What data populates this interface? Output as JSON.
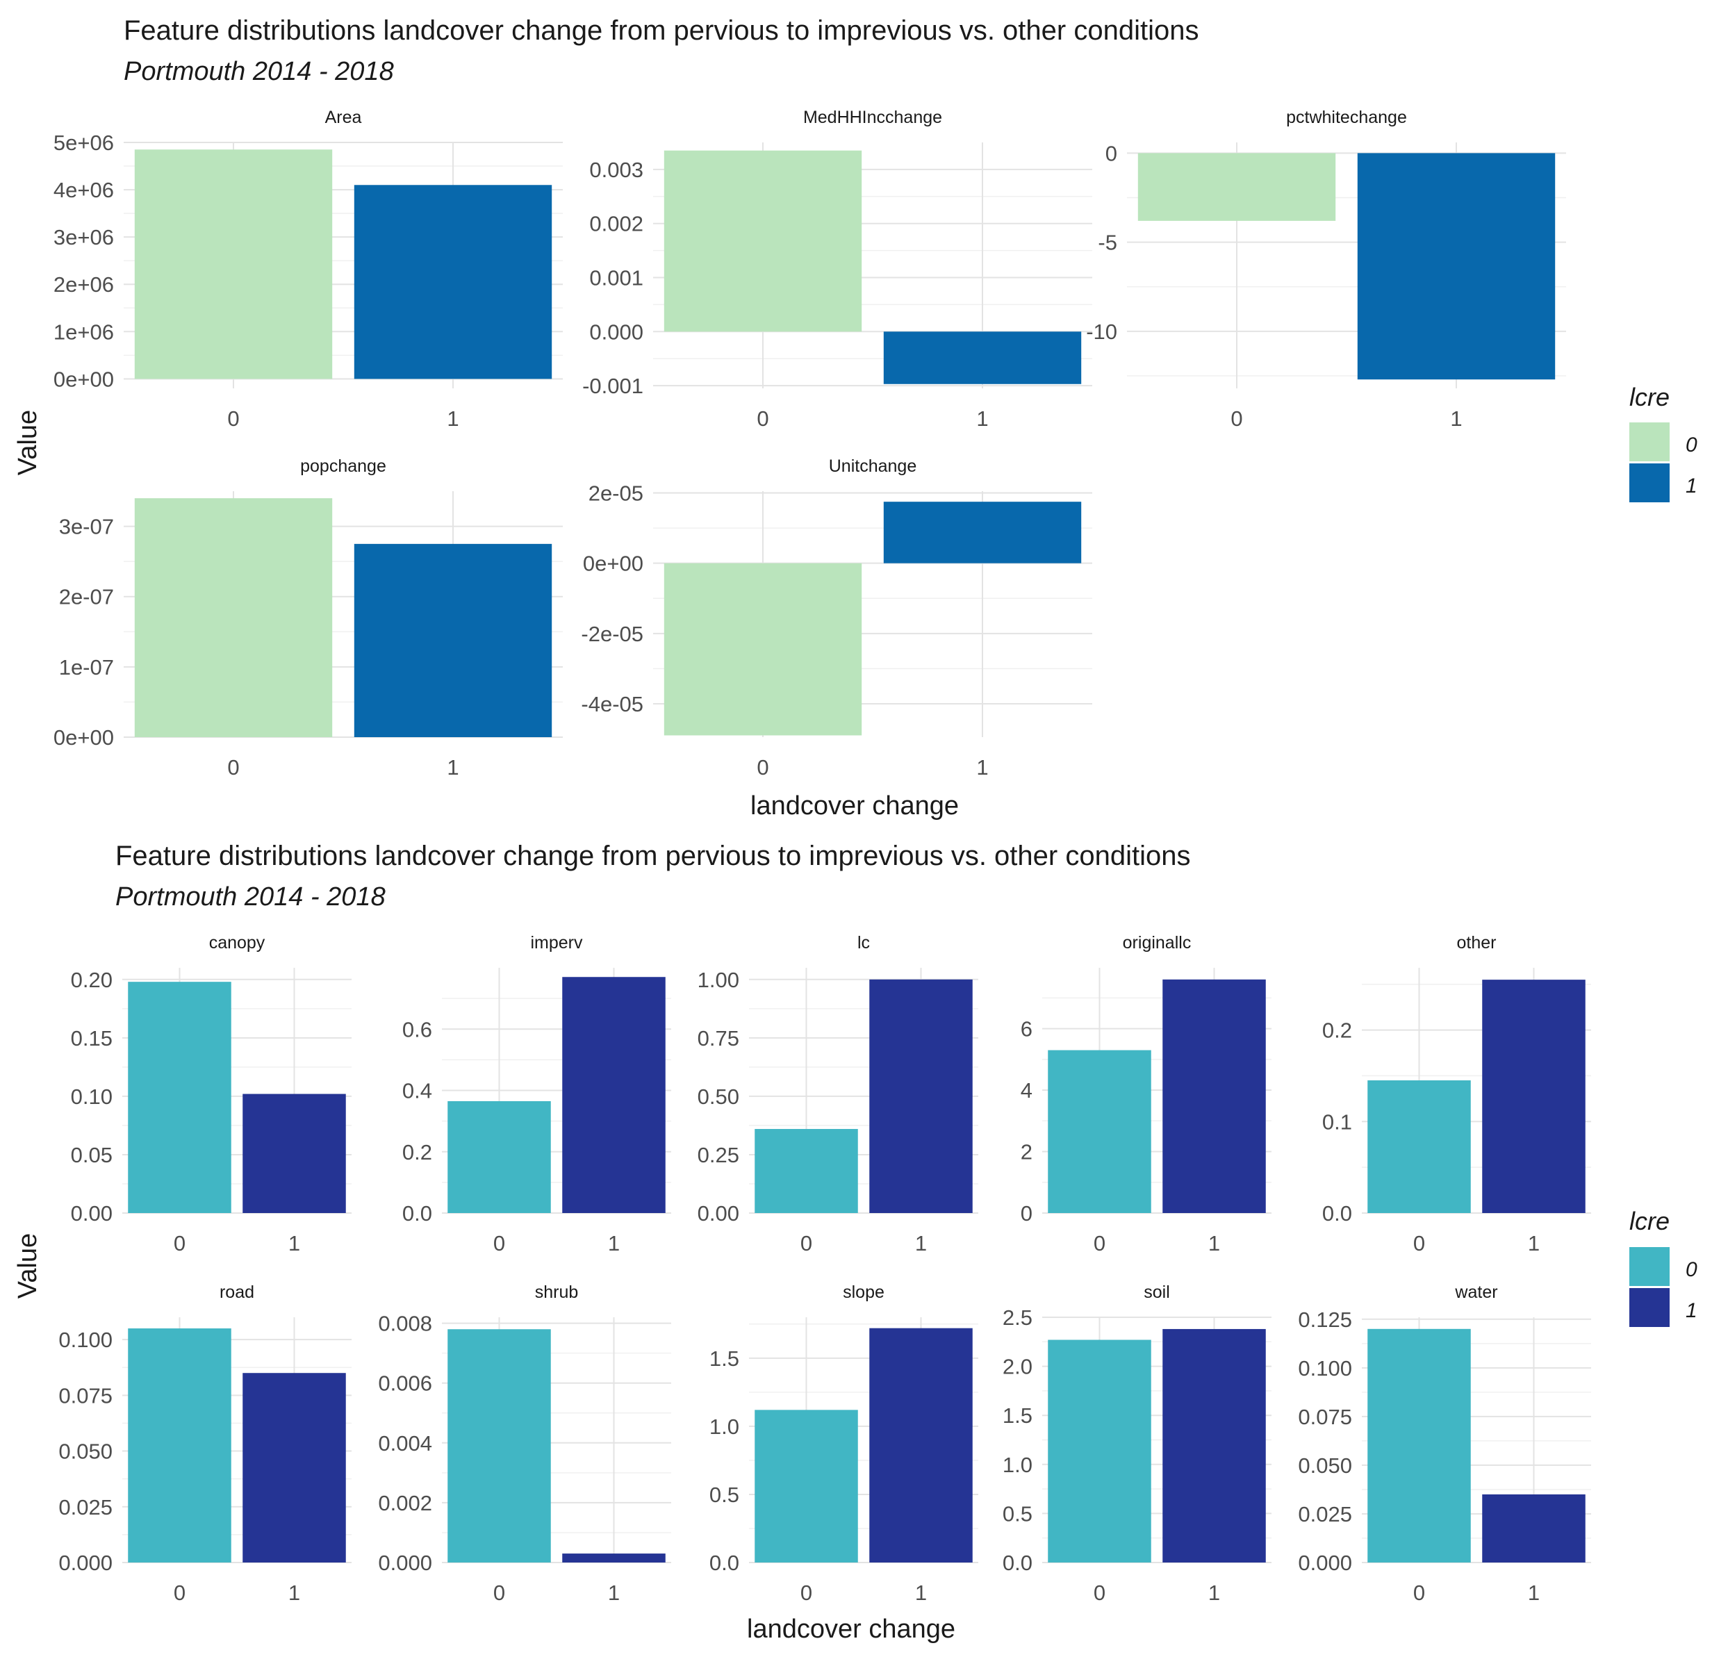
{
  "figures": [
    {
      "title": "Feature distributions landcover change from pervious to imprevious vs. other conditions",
      "subtitle": "Portmouth 2014 - 2018",
      "xlabel": "landcover change",
      "ylabel": "Value",
      "legend": {
        "title": "lcre",
        "labels": [
          "0",
          "1"
        ]
      },
      "colors": [
        "#bae4bc",
        "#0868ac"
      ]
    },
    {
      "title": "Feature distributions landcover change from pervious to imprevious vs. other conditions",
      "subtitle": "Portmouth 2014 - 2018",
      "xlabel": "landcover change",
      "ylabel": "Value",
      "legend": {
        "title": "lcre",
        "labels": [
          "0",
          "1"
        ]
      },
      "colors": [
        "#41b6c4",
        "#253494"
      ]
    }
  ],
  "chart_data": [
    {
      "type": "bar",
      "title": "Feature distributions landcover change from pervious to imprevious vs. other conditions",
      "subtitle": "Portmouth 2014 - 2018",
      "xlabel": "landcover change",
      "ylabel": "Value",
      "categories": [
        "0",
        "1"
      ],
      "legend_title": "lcre",
      "legend_position": "right",
      "panels": [
        {
          "name": "Area",
          "values": [
            4850000,
            4100000
          ],
          "ylim": [
            -200000,
            5000000
          ],
          "ticks": [
            0,
            1000000,
            2000000,
            3000000,
            4000000,
            5000000
          ],
          "tick_labels": [
            "0e+00",
            "1e+06",
            "2e+06",
            "3e+06",
            "4e+06",
            "5e+06"
          ]
        },
        {
          "name": "MedHHIncchange",
          "values": [
            0.00335,
            -0.00097
          ],
          "ylim": [
            -0.00105,
            0.0035
          ],
          "ticks": [
            -0.001,
            0.0,
            0.001,
            0.002,
            0.003
          ],
          "tick_labels": [
            "-0.001",
            "0.000",
            "0.001",
            "0.002",
            "0.003"
          ]
        },
        {
          "name": "pctwhitechange",
          "values": [
            -3.8,
            -12.7
          ],
          "ylim": [
            -13.2,
            0.6
          ],
          "ticks": [
            -10,
            -5,
            0
          ],
          "tick_labels": [
            "-10",
            "-5",
            "0"
          ]
        },
        {
          "name": "popchange",
          "values": [
            3.4e-07,
            2.75e-07
          ],
          "ylim": [
            0,
            3.5e-07
          ],
          "ticks": [
            0,
            1e-07,
            2e-07,
            3e-07
          ],
          "tick_labels": [
            "0e+00",
            "1e-07",
            "2e-07",
            "3e-07"
          ]
        },
        {
          "name": "Unitchange",
          "values": [
            -4.9e-05,
            1.75e-05
          ],
          "ylim": [
            -4.95e-05,
            2.05e-05
          ],
          "ticks": [
            -4e-05,
            -2e-05,
            0,
            2e-05
          ],
          "tick_labels": [
            "-4e-05",
            "-2e-05",
            "0e+00",
            "2e-05"
          ]
        }
      ]
    },
    {
      "type": "bar",
      "title": "Feature distributions landcover change from pervious to imprevious vs. other conditions",
      "subtitle": "Portmouth 2014 - 2018",
      "xlabel": "landcover change",
      "ylabel": "Value",
      "categories": [
        "0",
        "1"
      ],
      "legend_title": "lcre",
      "legend_position": "right",
      "panels": [
        {
          "name": "canopy",
          "values": [
            0.198,
            0.102
          ],
          "ylim": [
            0,
            0.21
          ],
          "ticks": [
            0,
            0.05,
            0.1,
            0.15,
            0.2
          ],
          "tick_labels": [
            "0.00",
            "0.05",
            "0.10",
            "0.15",
            "0.20"
          ]
        },
        {
          "name": "imperv",
          "values": [
            0.365,
            0.77
          ],
          "ylim": [
            0,
            0.8
          ],
          "ticks": [
            0,
            0.2,
            0.4,
            0.6
          ],
          "tick_labels": [
            "0.0",
            "0.2",
            "0.4",
            "0.6"
          ]
        },
        {
          "name": "lc",
          "values": [
            0.36,
            1.0
          ],
          "ylim": [
            0,
            1.05
          ],
          "ticks": [
            0,
            0.25,
            0.5,
            0.75,
            1.0
          ],
          "tick_labels": [
            "0.00",
            "0.25",
            "0.50",
            "0.75",
            "1.00"
          ]
        },
        {
          "name": "originallc",
          "values": [
            5.3,
            7.6
          ],
          "ylim": [
            0,
            7.98
          ],
          "ticks": [
            0,
            2,
            4,
            6
          ],
          "tick_labels": [
            "0",
            "2",
            "4",
            "6"
          ]
        },
        {
          "name": "other",
          "values": [
            0.145,
            0.255
          ],
          "ylim": [
            0,
            0.268
          ],
          "ticks": [
            0,
            0.1,
            0.2
          ],
          "tick_labels": [
            "0.0",
            "0.1",
            "0.2"
          ]
        },
        {
          "name": "road",
          "values": [
            0.105,
            0.085
          ],
          "ylim": [
            0,
            0.11
          ],
          "ticks": [
            0,
            0.025,
            0.05,
            0.075,
            0.1
          ],
          "tick_labels": [
            "0.000",
            "0.025",
            "0.050",
            "0.075",
            "0.100"
          ]
        },
        {
          "name": "shrub",
          "values": [
            0.0078,
            0.0003
          ],
          "ylim": [
            0,
            0.0082
          ],
          "ticks": [
            0,
            0.002,
            0.004,
            0.006,
            0.008
          ],
          "tick_labels": [
            "0.000",
            "0.002",
            "0.004",
            "0.006",
            "0.008"
          ]
        },
        {
          "name": "slope",
          "values": [
            1.12,
            1.72
          ],
          "ylim": [
            0,
            1.8
          ],
          "ticks": [
            0,
            0.5,
            1.0,
            1.5
          ],
          "tick_labels": [
            "0.0",
            "0.5",
            "1.0",
            "1.5"
          ]
        },
        {
          "name": "soil",
          "values": [
            2.27,
            2.38
          ],
          "ylim": [
            0,
            2.5
          ],
          "ticks": [
            0,
            0.5,
            1.0,
            1.5,
            2.0,
            2.5
          ],
          "tick_labels": [
            "0.0",
            "0.5",
            "1.0",
            "1.5",
            "2.0",
            "2.5"
          ]
        },
        {
          "name": "water",
          "values": [
            0.12,
            0.035
          ],
          "ylim": [
            0,
            0.126
          ],
          "ticks": [
            0,
            0.025,
            0.05,
            0.075,
            0.1,
            0.125
          ],
          "tick_labels": [
            "0.000",
            "0.025",
            "0.050",
            "0.075",
            "0.100",
            "0.125"
          ]
        }
      ]
    }
  ]
}
